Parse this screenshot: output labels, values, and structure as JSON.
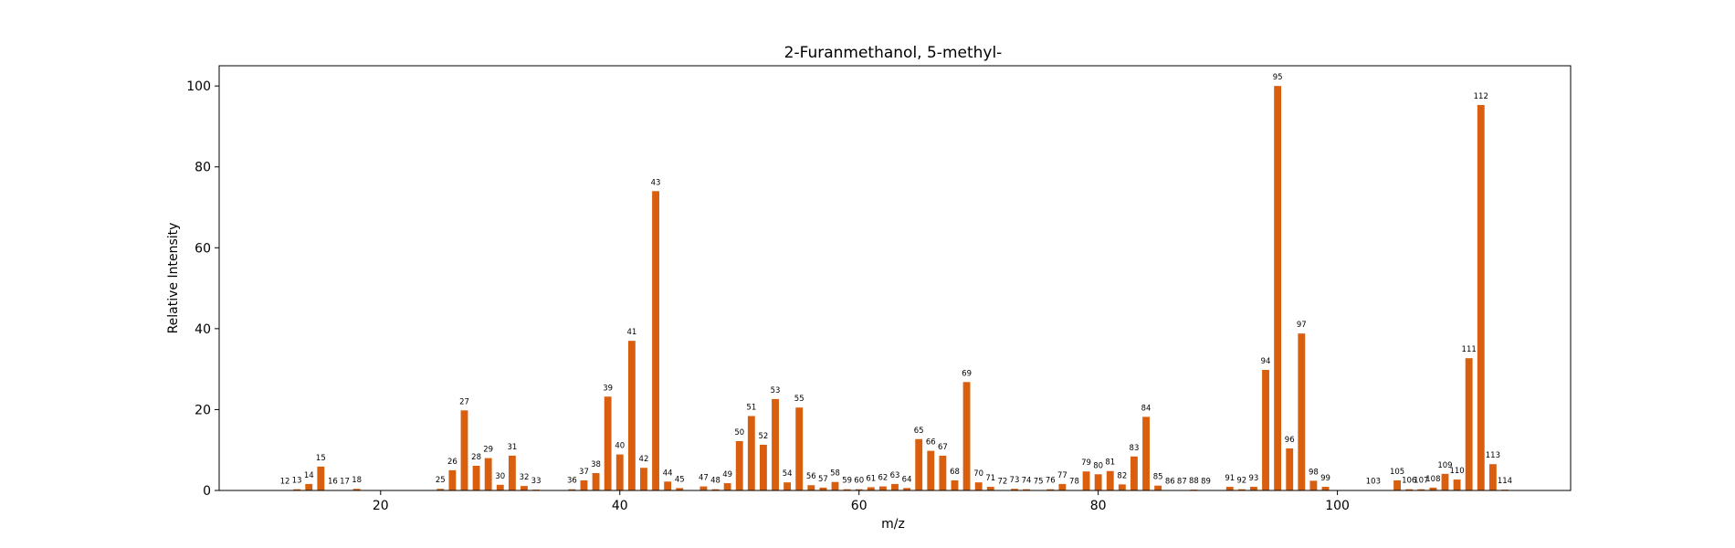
{
  "chart_data": {
    "type": "bar",
    "title": "2-Furanmethanol, 5-methyl-",
    "xlabel": "m/z",
    "ylabel": "Relative Intensity",
    "xlim": [
      6.5,
      119.5
    ],
    "ylim": [
      0,
      105
    ],
    "xticks": [
      20,
      40,
      60,
      80,
      100
    ],
    "yticks": [
      0,
      20,
      40,
      60,
      80,
      100
    ],
    "grid": false,
    "bar_color": "#d95f0e",
    "x": [
      12,
      13,
      14,
      15,
      16,
      17,
      18,
      25,
      26,
      27,
      28,
      29,
      30,
      31,
      32,
      33,
      36,
      37,
      38,
      39,
      40,
      41,
      42,
      43,
      44,
      45,
      47,
      48,
      49,
      50,
      51,
      52,
      53,
      54,
      55,
      56,
      57,
      58,
      59,
      60,
      61,
      62,
      63,
      64,
      65,
      66,
      67,
      68,
      69,
      70,
      71,
      72,
      73,
      74,
      75,
      76,
      77,
      78,
      79,
      80,
      81,
      82,
      83,
      84,
      85,
      86,
      87,
      88,
      89,
      91,
      92,
      93,
      94,
      95,
      96,
      97,
      98,
      99,
      103,
      105,
      106,
      107,
      108,
      109,
      110,
      111,
      112,
      113,
      114
    ],
    "values": [
      0.1,
      0.3,
      1.6,
      5.9,
      0.1,
      0.1,
      0.4,
      0.4,
      5.0,
      19.8,
      6.1,
      8.0,
      1.4,
      8.6,
      1.1,
      0.2,
      0.3,
      2.5,
      4.3,
      23.2,
      8.9,
      37.0,
      5.6,
      74.0,
      2.2,
      0.6,
      1.0,
      0.3,
      1.8,
      12.2,
      18.4,
      11.3,
      22.6,
      2.0,
      20.5,
      1.3,
      0.7,
      2.1,
      0.3,
      0.3,
      0.8,
      1.0,
      1.6,
      0.6,
      12.7,
      9.8,
      8.6,
      2.5,
      26.8,
      2.0,
      0.9,
      0.1,
      0.4,
      0.3,
      0.1,
      0.3,
      1.6,
      0.1,
      4.7,
      4.0,
      4.8,
      1.5,
      8.4,
      18.2,
      1.2,
      0.1,
      0.1,
      0.2,
      0.1,
      0.9,
      0.3,
      0.9,
      29.8,
      100.0,
      10.4,
      38.8,
      2.4,
      0.9,
      0.1,
      2.5,
      0.3,
      0.3,
      0.7,
      4.1,
      2.7,
      32.7,
      95.3,
      6.5,
      0.2
    ],
    "labels": [
      "12",
      "13",
      "14",
      "15",
      "16",
      "17",
      "18",
      "25",
      "26",
      "27",
      "28",
      "29",
      "30",
      "31",
      "32",
      "33",
      "36",
      "37",
      "38",
      "39",
      "40",
      "41",
      "42",
      "43",
      "44",
      "45",
      "47",
      "48",
      "49",
      "50",
      "51",
      "52",
      "53",
      "54",
      "55",
      "56",
      "57",
      "58",
      "59",
      "60",
      "61",
      "62",
      "63",
      "64",
      "65",
      "66",
      "67",
      "68",
      "69",
      "70",
      "71",
      "72",
      "73",
      "74",
      "75",
      "76",
      "77",
      "78",
      "79",
      "80",
      "81",
      "82",
      "83",
      "84",
      "85",
      "86",
      "87",
      "88",
      "89",
      "91",
      "92",
      "93",
      "94",
      "95",
      "96",
      "97",
      "98",
      "99",
      "103",
      "105",
      "106",
      "107",
      "108",
      "109",
      "110",
      "111",
      "112",
      "113",
      "114"
    ]
  }
}
